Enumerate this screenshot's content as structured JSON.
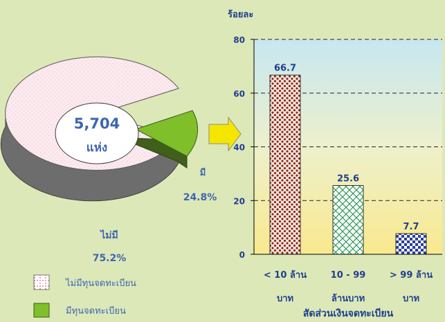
{
  "chart_data": [
    {
      "type": "pie",
      "center_text": "5,704",
      "center_subtext": "แห่ง",
      "slices": [
        {
          "name": "ไม่มี",
          "value": 75.2,
          "label": "75.2%",
          "color": "#fbe9ee"
        },
        {
          "name": "มี",
          "value": 24.8,
          "label": "24.8%",
          "color": "#7fbf2a"
        }
      ],
      "legend": [
        {
          "label": "ไม่มีทุนจดทะเบียน"
        },
        {
          "label": "มีทุนจดทะเบียน"
        }
      ]
    },
    {
      "type": "bar",
      "ylabel": "ร้อยละ",
      "xlabel": "สัดส่วนเงินจดทะเบียน",
      "ylim": [
        0,
        80
      ],
      "yticks": [
        "0",
        "20",
        "40",
        "60",
        "80"
      ],
      "categories": [
        {
          "line1": "< 10 ล้าน",
          "line2": "บาท"
        },
        {
          "line1": "10 - 99",
          "line2": "ล้านบาท"
        },
        {
          "line1": "> 99 ล้าน",
          "line2": "บาท"
        }
      ],
      "values": [
        66.7,
        25.6,
        7.7
      ],
      "value_labels": [
        "66.7",
        "25.6",
        "7.7"
      ]
    }
  ],
  "colors": {
    "background": "#dde8b8",
    "label_text": "#3e66b0",
    "axis_text": "#1f3f8f",
    "arrow": "#f5e600"
  }
}
